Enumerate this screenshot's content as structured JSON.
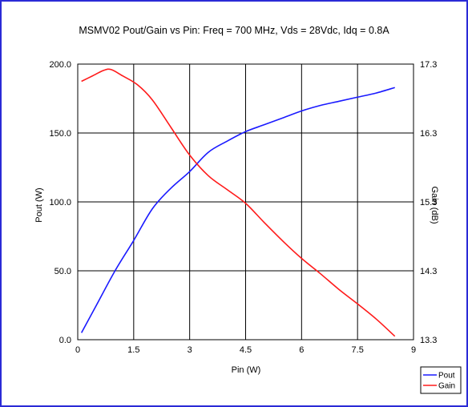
{
  "chart_data": {
    "type": "line",
    "title": "MSMV02 Pout/Gain vs Pin: Freq = 700 MHz, Vds = 28Vdc, Idq = 0.8A",
    "xlabel": "Pin (W)",
    "ylabel_left": "Pout (W)",
    "ylabel_right": "Gain (dB)",
    "xlim": [
      0,
      9
    ],
    "ylim_left": [
      0,
      200
    ],
    "ylim_right": [
      13.3,
      17.3
    ],
    "x_ticks": [
      "0",
      "1.5",
      "3",
      "4.5",
      "6",
      "7.5",
      "9"
    ],
    "y_left_ticks": [
      "0.0",
      "50.0",
      "100.0",
      "150.0",
      "200.0"
    ],
    "y_right_ticks": [
      "13.3",
      "14.3",
      "15.3",
      "16.3",
      "17.3"
    ],
    "grid": true,
    "legend_position": "bottom-right",
    "series": [
      {
        "name": "Pout",
        "axis": "left",
        "color": "#1a1aff",
        "points": [
          [
            0.1,
            5
          ],
          [
            0.5,
            25
          ],
          [
            1.0,
            50
          ],
          [
            1.5,
            72
          ],
          [
            2.0,
            95
          ],
          [
            2.5,
            110
          ],
          [
            3.0,
            122
          ],
          [
            3.5,
            136
          ],
          [
            4.0,
            144
          ],
          [
            4.5,
            151
          ],
          [
            5.0,
            156
          ],
          [
            5.5,
            161
          ],
          [
            6.0,
            166
          ],
          [
            6.5,
            170
          ],
          [
            7.0,
            173
          ],
          [
            7.5,
            176
          ],
          [
            8.0,
            179
          ],
          [
            8.5,
            183
          ]
        ]
      },
      {
        "name": "Gain",
        "axis": "right",
        "color": "#ff1a1a",
        "points": [
          [
            0.1,
            17.05
          ],
          [
            0.4,
            17.13
          ],
          [
            0.7,
            17.21
          ],
          [
            0.9,
            17.22
          ],
          [
            1.2,
            17.13
          ],
          [
            1.6,
            17.0
          ],
          [
            2.0,
            16.78
          ],
          [
            2.5,
            16.38
          ],
          [
            3.0,
            15.98
          ],
          [
            3.5,
            15.68
          ],
          [
            4.0,
            15.48
          ],
          [
            4.5,
            15.28
          ],
          [
            5.0,
            15.0
          ],
          [
            5.5,
            14.73
          ],
          [
            6.0,
            14.48
          ],
          [
            6.5,
            14.26
          ],
          [
            7.0,
            14.03
          ],
          [
            7.5,
            13.82
          ],
          [
            8.0,
            13.6
          ],
          [
            8.5,
            13.35
          ]
        ]
      }
    ]
  }
}
